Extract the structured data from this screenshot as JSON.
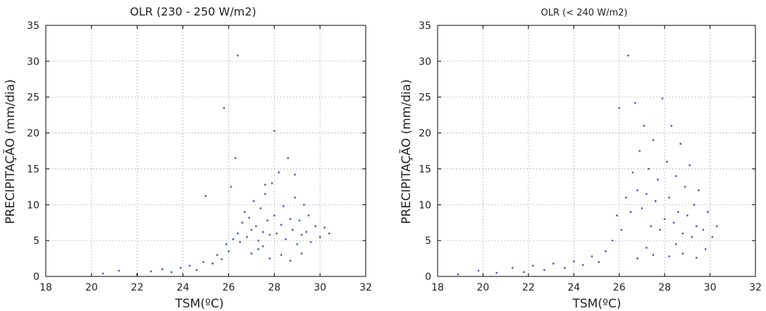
{
  "chart_data": [
    {
      "type": "scatter",
      "title": "OLR (230 - 250 W/m2)",
      "xlabel": "TSM(ºC)",
      "ylabel": "PRECIPITAÇÃO (mm/dia)",
      "xlim": [
        18,
        32
      ],
      "ylim": [
        0,
        35
      ],
      "xticks": [
        18,
        20,
        22,
        24,
        26,
        28,
        30,
        32
      ],
      "yticks": [
        0,
        5,
        10,
        15,
        20,
        25,
        30,
        35
      ],
      "grid": true,
      "marker_color": "#2a45b5",
      "points": [
        [
          20.5,
          0.4
        ],
        [
          21.2,
          0.8
        ],
        [
          22.0,
          0.3
        ],
        [
          22.6,
          0.7
        ],
        [
          23.1,
          1.0
        ],
        [
          23.5,
          0.6
        ],
        [
          23.9,
          1.2
        ],
        [
          24.3,
          1.5
        ],
        [
          24.6,
          0.9
        ],
        [
          24.9,
          2.0
        ],
        [
          25.0,
          11.2
        ],
        [
          25.3,
          1.8
        ],
        [
          25.5,
          3.0
        ],
        [
          25.7,
          2.4
        ],
        [
          25.9,
          4.5
        ],
        [
          26.0,
          3.5
        ],
        [
          26.1,
          12.5
        ],
        [
          26.2,
          5.2
        ],
        [
          26.3,
          16.5
        ],
        [
          26.4,
          6.0
        ],
        [
          26.4,
          30.8
        ],
        [
          26.5,
          4.8
        ],
        [
          26.6,
          7.5
        ],
        [
          26.7,
          9.0
        ],
        [
          26.8,
          5.5
        ],
        [
          26.9,
          8.2
        ],
        [
          27.0,
          6.5
        ],
        [
          27.0,
          3.2
        ],
        [
          27.1,
          10.5
        ],
        [
          27.2,
          7.0
        ],
        [
          27.3,
          5.0
        ],
        [
          27.4,
          9.5
        ],
        [
          27.5,
          6.2
        ],
        [
          27.5,
          4.2
        ],
        [
          27.6,
          11.5
        ],
        [
          27.7,
          7.8
        ],
        [
          27.8,
          5.8
        ],
        [
          27.9,
          13.0
        ],
        [
          28.0,
          8.5
        ],
        [
          28.0,
          20.3
        ],
        [
          28.1,
          6.0
        ],
        [
          28.2,
          14.5
        ],
        [
          28.3,
          7.2
        ],
        [
          28.4,
          9.8
        ],
        [
          28.5,
          5.2
        ],
        [
          28.6,
          16.5
        ],
        [
          28.7,
          8.0
        ],
        [
          28.8,
          6.5
        ],
        [
          28.9,
          11.0
        ],
        [
          29.0,
          4.5
        ],
        [
          29.1,
          7.8
        ],
        [
          29.2,
          5.8
        ],
        [
          29.3,
          10.0
        ],
        [
          29.4,
          6.2
        ],
        [
          29.5,
          8.5
        ],
        [
          29.6,
          4.8
        ],
        [
          29.8,
          7.0
        ],
        [
          30.0,
          5.5
        ],
        [
          30.2,
          6.8
        ],
        [
          30.4,
          6.0
        ],
        [
          25.8,
          23.5
        ],
        [
          27.3,
          3.8
        ],
        [
          27.8,
          2.5
        ],
        [
          28.3,
          3.0
        ],
        [
          28.7,
          2.2
        ],
        [
          29.2,
          3.2
        ],
        [
          27.6,
          12.8
        ],
        [
          28.9,
          14.2
        ]
      ]
    },
    {
      "type": "scatter",
      "title": "OLR (< 240 W/m2)",
      "xlabel": "TSM(ºC)",
      "ylabel": "PRECIPITAÇÃO (mm/dia)",
      "xlim": [
        18,
        32
      ],
      "ylim": [
        0,
        35
      ],
      "xticks": [
        18,
        20,
        22,
        24,
        26,
        28,
        30,
        32
      ],
      "yticks": [
        0,
        5,
        10,
        15,
        20,
        25,
        30,
        35
      ],
      "grid": true,
      "marker_color": "#2a45b5",
      "points": [
        [
          18.9,
          0.3
        ],
        [
          19.8,
          0.8
        ],
        [
          20.6,
          0.5
        ],
        [
          21.3,
          1.2
        ],
        [
          21.8,
          0.6
        ],
        [
          22.2,
          1.5
        ],
        [
          22.7,
          0.9
        ],
        [
          23.1,
          1.8
        ],
        [
          23.6,
          1.2
        ],
        [
          24.0,
          2.1
        ],
        [
          24.4,
          1.6
        ],
        [
          24.8,
          2.8
        ],
        [
          25.1,
          2.0
        ],
        [
          25.4,
          3.5
        ],
        [
          25.7,
          5.0
        ],
        [
          25.9,
          8.5
        ],
        [
          26.0,
          23.5
        ],
        [
          26.1,
          6.5
        ],
        [
          26.3,
          11.0
        ],
        [
          26.4,
          30.8
        ],
        [
          26.5,
          9.0
        ],
        [
          26.6,
          14.5
        ],
        [
          26.7,
          24.2
        ],
        [
          26.8,
          12.0
        ],
        [
          26.9,
          17.5
        ],
        [
          27.0,
          9.5
        ],
        [
          27.1,
          21.0
        ],
        [
          27.2,
          11.5
        ],
        [
          27.3,
          15.0
        ],
        [
          27.4,
          7.0
        ],
        [
          27.5,
          19.0
        ],
        [
          27.6,
          10.5
        ],
        [
          27.7,
          13.5
        ],
        [
          27.8,
          6.5
        ],
        [
          27.9,
          24.8
        ],
        [
          28.0,
          8.0
        ],
        [
          28.1,
          16.0
        ],
        [
          28.2,
          11.0
        ],
        [
          28.3,
          21.0
        ],
        [
          28.4,
          7.5
        ],
        [
          28.5,
          14.0
        ],
        [
          28.6,
          9.0
        ],
        [
          28.7,
          18.5
        ],
        [
          28.8,
          6.0
        ],
        [
          28.9,
          12.5
        ],
        [
          29.0,
          8.5
        ],
        [
          29.1,
          15.5
        ],
        [
          29.2,
          5.5
        ],
        [
          29.3,
          10.0
        ],
        [
          29.4,
          7.0
        ],
        [
          29.5,
          12.0
        ],
        [
          29.7,
          6.5
        ],
        [
          29.9,
          9.0
        ],
        [
          30.1,
          5.5
        ],
        [
          30.3,
          7.0
        ],
        [
          26.8,
          2.5
        ],
        [
          27.5,
          3.0
        ],
        [
          28.2,
          2.8
        ],
        [
          28.8,
          3.2
        ],
        [
          29.4,
          2.6
        ],
        [
          27.2,
          4.0
        ],
        [
          28.5,
          4.5
        ],
        [
          29.8,
          3.8
        ]
      ]
    }
  ]
}
